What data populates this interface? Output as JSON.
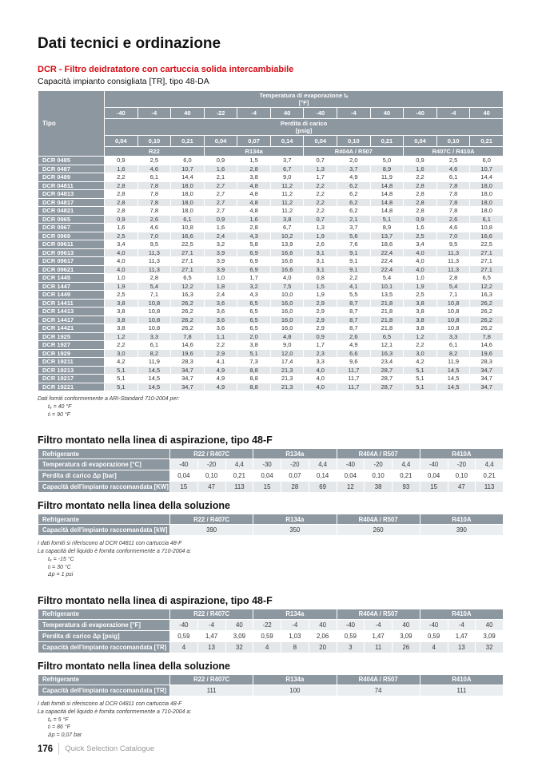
{
  "page": {
    "title": "Dati tecnici e ordinazione",
    "subtitle": "DCR - Filtro deidratatore con cartuccia solida intercambiabile",
    "caption": "Capacità impianto consigliata [TR], tipo 48-DA",
    "footer": {
      "page_number": "176",
      "catalogue": "Quick Selection Catalogue"
    }
  },
  "colors": {
    "accent_red": "#d50c14",
    "table_header_gray": "#8d97a0",
    "row_stripe": "#e4e7ea"
  },
  "main_table": {
    "tipo_header": "Tipo",
    "temp_header_line1": "Temperatura di evaporazione tₑ",
    "temp_header_line2": "[°F]",
    "temps": [
      "-40",
      "-4",
      "40",
      "-22",
      "-4",
      "40",
      "-40",
      "-4",
      "40",
      "-40",
      "-4",
      "40"
    ],
    "loss_header_line1": "Perdita di carico",
    "loss_header_line2": "[psig]",
    "losses": [
      "0,04",
      "0,10",
      "0,21",
      "0,04",
      "0,07",
      "0,14",
      "0,04",
      "0,10",
      "0,21",
      "0,04",
      "0,10",
      "0,21"
    ],
    "refrigerants": [
      "R22",
      "R134a",
      "R404A / R507",
      "R407C / R410A"
    ],
    "rows": [
      {
        "tipo": "DCR 0485",
        "values": [
          "0,9",
          "2,5",
          "6,0",
          "0,9",
          "1,5",
          "3,7",
          "0,7",
          "2,0",
          "5,0",
          "0,9",
          "2,5",
          "6,0"
        ]
      },
      {
        "tipo": "DCR 0487",
        "values": [
          "1,6",
          "4,6",
          "10,7",
          "1,6",
          "2,8",
          "6,7",
          "1,3",
          "3,7",
          "8,9",
          "1,6",
          "4,6",
          "10,7"
        ]
      },
      {
        "tipo": "DCR 0489",
        "values": [
          "2,2",
          "6,1",
          "14,4",
          "2,1",
          "3,8",
          "9,0",
          "1,7",
          "4,9",
          "11,9",
          "2,2",
          "6,1",
          "14,4"
        ]
      },
      {
        "tipo": "DCR 04811",
        "values": [
          "2,8",
          "7,8",
          "18,0",
          "2,7",
          "4,8",
          "11,2",
          "2,2",
          "6,2",
          "14,8",
          "2,8",
          "7,8",
          "18,0"
        ]
      },
      {
        "tipo": "DCR 04813",
        "values": [
          "2,8",
          "7,8",
          "18,0",
          "2,7",
          "4,8",
          "11,2",
          "2,2",
          "6,2",
          "14,8",
          "2,8",
          "7,8",
          "18,0"
        ]
      },
      {
        "tipo": "DCR 04817",
        "values": [
          "2,8",
          "7,8",
          "18,0",
          "2,7",
          "4,8",
          "11,2",
          "2,2",
          "6,2",
          "14,8",
          "2,8",
          "7,8",
          "18,0"
        ]
      },
      {
        "tipo": "DCR 04821",
        "values": [
          "2,8",
          "7,8",
          "18,0",
          "2,7",
          "4,8",
          "11,2",
          "2,2",
          "6,2",
          "14,8",
          "2,8",
          "7,8",
          "18,0"
        ]
      },
      {
        "tipo": "DCR 0965",
        "values": [
          "0,9",
          "2,6",
          "6,1",
          "0,9",
          "1,6",
          "3,8",
          "0,7",
          "2,1",
          "5,1",
          "0,9",
          "2,6",
          "6,1"
        ]
      },
      {
        "tipo": "DCR 0967",
        "values": [
          "1,6",
          "4,6",
          "10,8",
          "1,6",
          "2,8",
          "6,7",
          "1,3",
          "3,7",
          "8,9",
          "1,6",
          "4,6",
          "10,8"
        ]
      },
      {
        "tipo": "DCR 0969",
        "values": [
          "2,5",
          "7,0",
          "16,6",
          "2,4",
          "4,3",
          "10,2",
          "1,9",
          "5,6",
          "13,7",
          "2,5",
          "7,0",
          "16,6"
        ]
      },
      {
        "tipo": "DCR 09611",
        "values": [
          "3,4",
          "9,5",
          "22,5",
          "3,2",
          "5,8",
          "13,9",
          "2,6",
          "7,6",
          "18,6",
          "3,4",
          "9,5",
          "22,5"
        ]
      },
      {
        "tipo": "DCR 09613",
        "values": [
          "4,0",
          "11,3",
          "27,1",
          "3,9",
          "6,9",
          "16,6",
          "3,1",
          "9,1",
          "22,4",
          "4,0",
          "11,3",
          "27,1"
        ]
      },
      {
        "tipo": "DCR 09617",
        "values": [
          "4,0",
          "11,3",
          "27,1",
          "3,9",
          "6,9",
          "16,6",
          "3,1",
          "9,1",
          "22,4",
          "4,0",
          "11,3",
          "27,1"
        ]
      },
      {
        "tipo": "DCR 09621",
        "values": [
          "4,0",
          "11,3",
          "27,1",
          "3,9",
          "6,9",
          "16,6",
          "3,1",
          "9,1",
          "22,4",
          "4,0",
          "11,3",
          "27,1"
        ]
      },
      {
        "tipo": "DCR 1445",
        "values": [
          "1,0",
          "2,8",
          "6,5",
          "1,0",
          "1,7",
          "4,0",
          "0,8",
          "2,2",
          "5,4",
          "1,0",
          "2,8",
          "6,5"
        ]
      },
      {
        "tipo": "DCR 1447",
        "values": [
          "1,9",
          "5,4",
          "12,2",
          "1,8",
          "3,2",
          "7,5",
          "1,5",
          "4,1",
          "10,1",
          "1,9",
          "5,4",
          "12,2"
        ]
      },
      {
        "tipo": "DCR 1449",
        "values": [
          "2,5",
          "7,1",
          "16,3",
          "2,4",
          "4,3",
          "10,0",
          "1,9",
          "5,5",
          "13,5",
          "2,5",
          "7,1",
          "16,3"
        ]
      },
      {
        "tipo": "DCR 14411",
        "values": [
          "3,8",
          "10,8",
          "26,2",
          "3,6",
          "6,5",
          "16,0",
          "2,9",
          "8,7",
          "21,8",
          "3,8",
          "10,8",
          "26,2"
        ]
      },
      {
        "tipo": "DCR 14413",
        "values": [
          "3,8",
          "10,8",
          "26,2",
          "3,6",
          "6,5",
          "16,0",
          "2,9",
          "8,7",
          "21,8",
          "3,8",
          "10,8",
          "26,2"
        ]
      },
      {
        "tipo": "DCR 14417",
        "values": [
          "3,8",
          "10,8",
          "26,2",
          "3,6",
          "6,5",
          "16,0",
          "2,9",
          "8,7",
          "21,8",
          "3,8",
          "10,8",
          "26,2"
        ]
      },
      {
        "tipo": "DCR 14421",
        "values": [
          "3,8",
          "10,8",
          "26,2",
          "3,6",
          "6,5",
          "16,0",
          "2,9",
          "8,7",
          "21,8",
          "3,8",
          "10,8",
          "26,2"
        ]
      },
      {
        "tipo": "DCR 1925",
        "values": [
          "1,2",
          "3,3",
          "7,8",
          "1,1",
          "2,0",
          "4,8",
          "0,9",
          "2,6",
          "6,5",
          "1,2",
          "3,3",
          "7,8"
        ]
      },
      {
        "tipo": "DCR 1927",
        "values": [
          "2,2",
          "6,1",
          "14,6",
          "2,2",
          "3,8",
          "9,0",
          "1,7",
          "4,9",
          "12,1",
          "2,2",
          "6,1",
          "14,6"
        ]
      },
      {
        "tipo": "DCR 1929",
        "values": [
          "3,0",
          "8,2",
          "19,6",
          "2,9",
          "5,1",
          "12,0",
          "2,3",
          "6,6",
          "16,3",
          "3,0",
          "8,2",
          "19,6"
        ]
      },
      {
        "tipo": "DCR 19211",
        "values": [
          "4,2",
          "11,9",
          "28,3",
          "4,1",
          "7,3",
          "17,4",
          "3,3",
          "9,6",
          "23,4",
          "4,2",
          "11,9",
          "28,3"
        ]
      },
      {
        "tipo": "DCR 19213",
        "values": [
          "5,1",
          "14,5",
          "34,7",
          "4,9",
          "8,8",
          "21,3",
          "4,0",
          "11,7",
          "28,7",
          "5,1",
          "14,5",
          "34,7"
        ]
      },
      {
        "tipo": "DCR 19217",
        "values": [
          "5,1",
          "14,5",
          "34,7",
          "4,9",
          "8,8",
          "21,3",
          "4,0",
          "11,7",
          "28,7",
          "5,1",
          "14,5",
          "34,7"
        ]
      },
      {
        "tipo": "DCR 19221",
        "values": [
          "5,1",
          "14,5",
          "34,7",
          "4,9",
          "8,8",
          "21,3",
          "4,0",
          "11,7",
          "28,7",
          "5,1",
          "14,5",
          "34,7"
        ]
      }
    ]
  },
  "notes_main": {
    "lines": [
      "Dati forniti conformemente a ARI-Standard 710-2004 per:"
    ],
    "items": [
      "tₑ = 40 °F",
      "tₗ = 90 °F"
    ]
  },
  "sections": [
    {
      "heading": "Filtro montato nella linea di aspirazione, tipo 48-F",
      "table": {
        "label_header": "Refrigerante",
        "groups": [
          "R22 / R407C",
          "R134a",
          "R404A / R507",
          "R410A"
        ],
        "cols_per_group": 3,
        "rows": [
          {
            "label": "Temperatura di evaporazione [°C]",
            "values": [
              "-40",
              "-20",
              "4,4",
              "-30",
              "-20",
              "4,4",
              "-40",
              "-20",
              "4,4",
              "-40",
              "-20",
              "4,4"
            ]
          },
          {
            "label": "Perdita di carico Δp [bar]",
            "values": [
              "0,04",
              "0,10",
              "0,21",
              "0,04",
              "0,07",
              "0,14",
              "0,04",
              "0,10",
              "0,21",
              "0,04",
              "0,10",
              "0,21"
            ]
          },
          {
            "label": "Capacità dell'impianto raccomandata [KW]",
            "values": [
              "15",
              "47",
              "113",
              "15",
              "28",
              "69",
              "12",
              "38",
              "93",
              "15",
              "47",
              "113"
            ]
          }
        ]
      }
    },
    {
      "heading": "Filtro montato nella linea della soluzione",
      "table": {
        "label_header": "Refrigerante",
        "groups": [
          "R22 / R407C",
          "R134a",
          "R404A / R507",
          "R410A"
        ],
        "cols_per_group": 1,
        "rows": [
          {
            "label": "Capacità dell'impianto raccomandata [kW]",
            "values": [
              "390",
              "350",
              "260",
              "390"
            ]
          }
        ]
      },
      "notes": {
        "lines": [
          "I dati forniti si riferiscono al DCR 04811 con cartuccia 48-F",
          "La capacità del liquido è fornita conformemente a 710-2004 a:"
        ],
        "items": [
          "tₑ = -15 °C",
          "tₗ = 30 °C",
          "Δp = 1 psi"
        ]
      }
    },
    {
      "heading": "Filtro montato nella linea di aspirazione, tipo 48-F",
      "table": {
        "label_header": "Refrigerante",
        "groups": [
          "R22 / R407C",
          "R134a",
          "R404A / R507",
          "R410A"
        ],
        "cols_per_group": 3,
        "rows": [
          {
            "label": "Temperatura di evaporazione [°F]",
            "values": [
              "-40",
              "-4",
              "40",
              "-22",
              "-4",
              "40",
              "-40",
              "-4",
              "40",
              "-40",
              "-4",
              "40"
            ]
          },
          {
            "label": "Perdita di carico Δp [psig]",
            "values": [
              "0,59",
              "1,47",
              "3,09",
              "0,59",
              "1,03",
              "2,06",
              "0,59",
              "1,47",
              "3,09",
              "0,59",
              "1,47",
              "3,09"
            ]
          },
          {
            "label": "Capacità dell'impianto raccomandata [TR]",
            "values": [
              "4",
              "13",
              "32",
              "4",
              "8",
              "20",
              "3",
              "11",
              "26",
              "4",
              "13",
              "32"
            ]
          }
        ]
      }
    },
    {
      "heading": "Filtro montato nella linea della soluzione",
      "table": {
        "label_header": "Refrigerante",
        "groups": [
          "R22 / R407C",
          "R134a",
          "R404A / R507",
          "R410A"
        ],
        "cols_per_group": 1,
        "rows": [
          {
            "label": "Capacità dell'impianto raccomandata [TR]",
            "values": [
              "111",
              "100",
              "74",
              "111"
            ]
          }
        ]
      },
      "notes": {
        "lines": [
          "I dati forniti si riferiscono al DCR 04811 con cartuccia 48-F",
          "La capacità del liquido è fornita conformemente a 710-2004 a:"
        ],
        "items": [
          "tₑ = 5 °F",
          "tₗ = 86 °F",
          "Δp = 0,07 bar"
        ]
      }
    }
  ]
}
